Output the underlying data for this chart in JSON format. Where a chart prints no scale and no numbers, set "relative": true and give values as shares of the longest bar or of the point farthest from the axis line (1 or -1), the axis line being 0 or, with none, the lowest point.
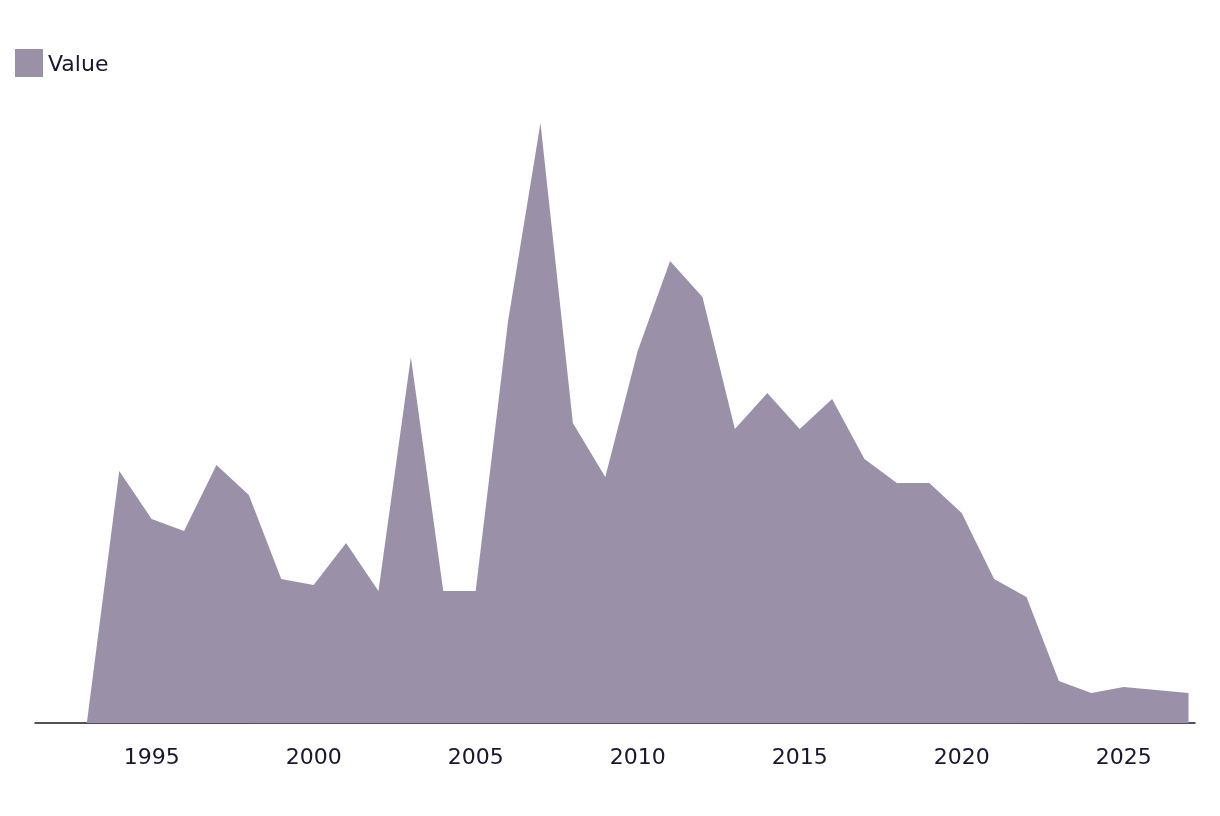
{
  "chart_data": {
    "type": "area",
    "relative": true,
    "x": [
      1993,
      1994,
      1995,
      1996,
      1997,
      1998,
      1999,
      2000,
      2001,
      2002,
      2003,
      2004,
      2005,
      2006,
      2007,
      2008,
      2009,
      2010,
      2011,
      2012,
      2013,
      2014,
      2015,
      2016,
      2017,
      2018,
      2019,
      2020,
      2021,
      2022,
      2023,
      2024,
      2025,
      2026,
      2027
    ],
    "series": [
      {
        "name": "Value",
        "color": "#9a91a9",
        "values": [
          0,
          0.42,
          0.34,
          0.32,
          0.43,
          0.38,
          0.24,
          0.23,
          0.3,
          0.22,
          0.61,
          0.22,
          0.22,
          0.67,
          1,
          0.5,
          0.41,
          0.62,
          0.77,
          0.71,
          0.49,
          0.55,
          0.49,
          0.54,
          0.44,
          0.4,
          0.4,
          0.35,
          0.24,
          0.21,
          0.07,
          0.05,
          0.06,
          0.055,
          0.05
        ]
      }
    ],
    "xlim": [
      1991.4,
      2027.2
    ],
    "xticks": [
      1995,
      2000,
      2005,
      2010,
      2015,
      2020,
      2025
    ],
    "legend": "top left",
    "grid": false
  }
}
